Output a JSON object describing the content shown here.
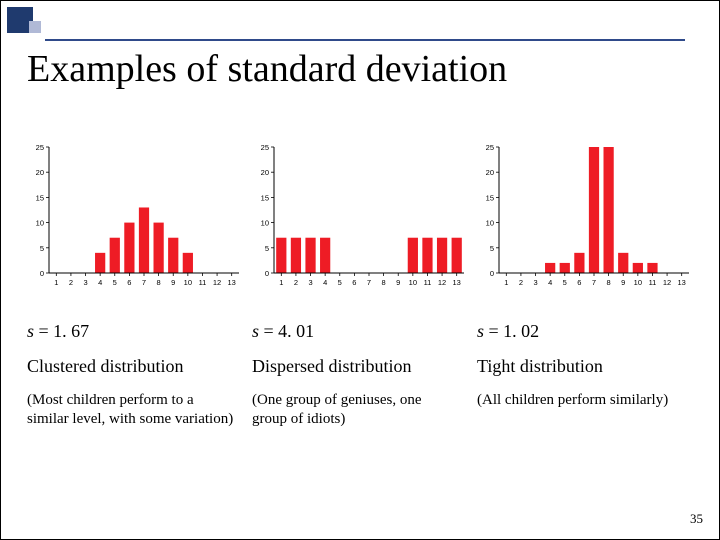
{
  "title": "Examples of standard deviation",
  "page_number": "35",
  "deco": {
    "main": "#1f3a6e",
    "light": "#b0b9d6",
    "rule": "#2f4a8a"
  },
  "chart_style": {
    "bar_color": "#ee1c25",
    "axis_color": "#000000",
    "tick_color": "#888888",
    "y_label_color": "#000000",
    "x_label_color": "#000000",
    "grid_color": "#cccccc",
    "x_label_fontsize": 7.5,
    "y_label_fontsize": 7.5,
    "ylim": [
      0,
      25
    ],
    "ytick_step": 5,
    "n_categories": 13
  },
  "charts": [
    {
      "categories": [
        "1",
        "2",
        "3",
        "4",
        "5",
        "6",
        "7",
        "8",
        "9",
        "10",
        "11",
        "12",
        "13"
      ],
      "values": [
        0,
        0,
        0,
        4,
        7,
        10,
        13,
        10,
        7,
        4,
        0,
        0,
        0
      ],
      "bar_group_width": 0.7
    },
    {
      "categories": [
        "1",
        "2",
        "3",
        "4",
        "5",
        "6",
        "7",
        "8",
        "9",
        "10",
        "11",
        "12",
        "13"
      ],
      "values": [
        7,
        7,
        7,
        7,
        0,
        0,
        0,
        0,
        0,
        7,
        7,
        7,
        7
      ],
      "bar_group_width": 0.7
    },
    {
      "categories": [
        "1",
        "2",
        "3",
        "4",
        "5",
        "6",
        "7",
        "8",
        "9",
        "10",
        "11",
        "12",
        "13"
      ],
      "values": [
        0,
        0,
        0,
        2,
        2,
        4,
        25,
        25,
        4,
        2,
        2,
        0,
        0
      ],
      "bar_group_width": 0.7
    }
  ],
  "columns": [
    {
      "s": "1. 67",
      "name": "Clustered distribution",
      "desc": "(Most children perform to a similar level, with some variation)"
    },
    {
      "s": "4. 01",
      "name": "Dispersed distribution",
      "desc": "(One group of geniuses, one group of idiots)"
    },
    {
      "s": "1. 02",
      "name": "Tight distribution",
      "desc": "(All children perform similarly)"
    }
  ]
}
